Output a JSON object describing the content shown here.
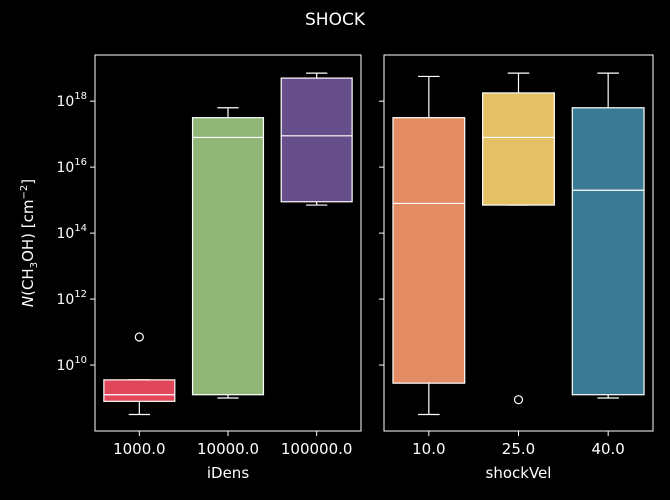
{
  "chart_data": {
    "type": "box",
    "title": "SHOCK",
    "ylabel_parts": {
      "italic": "N",
      "mid": "(CH",
      "sub": "3",
      "tail": "OH) [cm",
      "sup": "−2",
      "close": "]"
    },
    "y_scale": "log10",
    "y_range_log10": [
      8.0,
      19.4
    ],
    "y_ticks": [
      {
        "exp": 10,
        "label_base": "10",
        "label_exp": "10"
      },
      {
        "exp": 12,
        "label_base": "10",
        "label_exp": "12"
      },
      {
        "exp": 14,
        "label_base": "10",
        "label_exp": "14"
      },
      {
        "exp": 16,
        "label_base": "10",
        "label_exp": "16"
      },
      {
        "exp": 18,
        "label_base": "10",
        "label_exp": "18"
      }
    ],
    "grid": false,
    "panels": [
      {
        "xlabel": "iDens",
        "show_ytick_labels": true,
        "categories": [
          "1000.0",
          "10000.0",
          "100000.0"
        ],
        "boxes": [
          {
            "category": "1000.0",
            "color": "#e0475a",
            "whisker_low": 8.5,
            "q1": 8.9,
            "median": 9.1,
            "q3": 9.55,
            "whisker_high": 9.55,
            "outliers": [
              10.85
            ]
          },
          {
            "category": "10000.0",
            "color": "#8fb677",
            "whisker_low": 9.0,
            "q1": 9.1,
            "median": 16.9,
            "q3": 17.5,
            "whisker_high": 17.8,
            "outliers": []
          },
          {
            "category": "100000.0",
            "color": "#674f8b",
            "whisker_low": 14.85,
            "q1": 14.95,
            "median": 16.95,
            "q3": 18.7,
            "whisker_high": 18.85,
            "outliers": []
          }
        ]
      },
      {
        "xlabel": "shockVel",
        "show_ytick_labels": false,
        "categories": [
          "10.0",
          "25.0",
          "40.0"
        ],
        "boxes": [
          {
            "category": "10.0",
            "color": "#e38b62",
            "whisker_low": 8.5,
            "q1": 9.45,
            "median": 14.9,
            "q3": 17.5,
            "whisker_high": 18.75,
            "outliers": []
          },
          {
            "category": "25.0",
            "color": "#e6c065",
            "whisker_low": 14.85,
            "q1": 14.85,
            "median": 16.9,
            "q3": 18.25,
            "whisker_high": 18.85,
            "outliers": [
              8.95
            ]
          },
          {
            "category": "40.0",
            "color": "#3a7a93",
            "whisker_low": 9.0,
            "q1": 9.1,
            "median": 15.3,
            "q3": 17.8,
            "whisker_high": 18.85,
            "outliers": []
          }
        ]
      }
    ]
  }
}
